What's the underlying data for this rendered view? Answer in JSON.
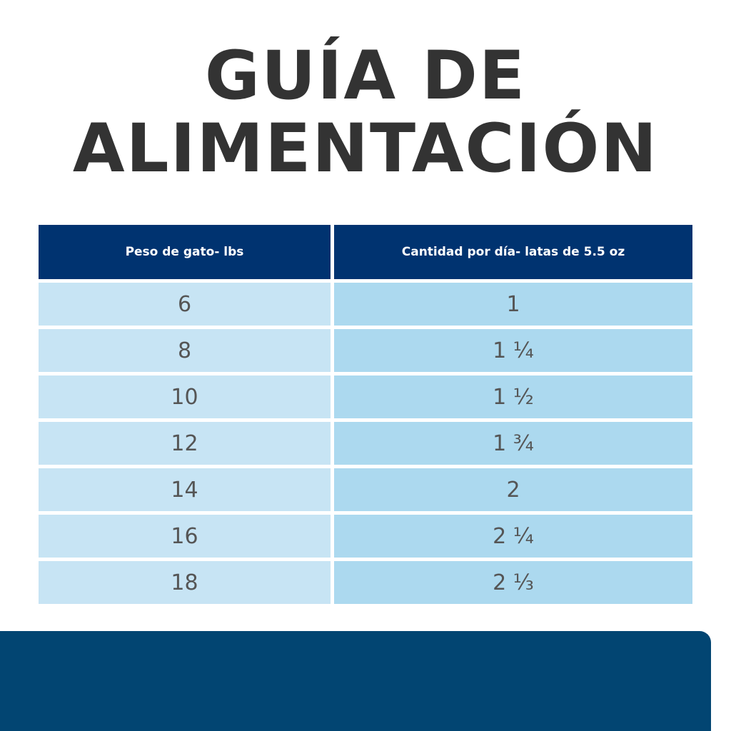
{
  "header": {
    "title_line1": "GUÍA DE",
    "title_line2": "ALIMENTACIÓN"
  },
  "table": {
    "columns": [
      "Peso de gato- lbs",
      "Cantidad por día- latas de 5.5 oz"
    ],
    "rows": [
      [
        "6",
        "1"
      ],
      [
        "8",
        "1 ¼"
      ],
      [
        "10",
        "1 ½"
      ],
      [
        "12",
        "1 ¾"
      ],
      [
        "14",
        "2"
      ],
      [
        "16",
        "2 ¼"
      ],
      [
        "18",
        "2 ⅓"
      ]
    ]
  }
}
